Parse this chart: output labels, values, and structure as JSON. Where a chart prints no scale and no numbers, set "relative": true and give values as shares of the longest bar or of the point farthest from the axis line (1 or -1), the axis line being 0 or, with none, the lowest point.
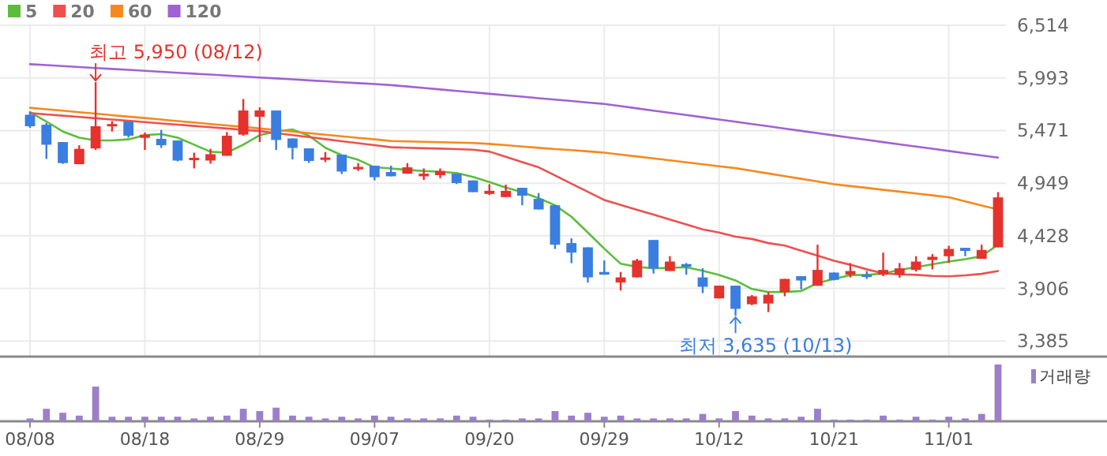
{
  "chart_data": [
    {
      "type": "candlestick",
      "categories": [
        null,
        null,
        null,
        null,
        null,
        null,
        null,
        null,
        null,
        null,
        null,
        null,
        null,
        null,
        null,
        null,
        null,
        null,
        null,
        null,
        null,
        null,
        null,
        null,
        null,
        null,
        null,
        null,
        null,
        null,
        null,
        null,
        null,
        null,
        null,
        null,
        null,
        null,
        null,
        null,
        null,
        null,
        null,
        null,
        null,
        null,
        null,
        null,
        null,
        null,
        null,
        null,
        null,
        null,
        null,
        null,
        null,
        null,
        null,
        null
      ],
      "ohlc": [
        [
          5627,
          5658,
          5497,
          5513
        ],
        [
          5528,
          5545,
          5189,
          5330
        ],
        [
          5356,
          5356,
          5140,
          5148
        ],
        [
          5137,
          5325,
          5137,
          5289
        ],
        [
          5293,
          5950,
          5278,
          5513
        ],
        [
          5528,
          5564,
          5461,
          5535
        ],
        [
          5560,
          5560,
          5400,
          5419
        ],
        [
          5398,
          5450,
          5278,
          5430
        ],
        [
          5388,
          5477,
          5298,
          5325
        ],
        [
          5372,
          5372,
          5165,
          5173
        ],
        [
          5195,
          5251,
          5095,
          5200
        ],
        [
          5173,
          5289,
          5142,
          5236
        ],
        [
          5220,
          5455,
          5220,
          5419
        ],
        [
          5430,
          5783,
          5419,
          5669
        ],
        [
          5607,
          5700,
          5356,
          5670
        ],
        [
          5669,
          5669,
          5278,
          5377
        ],
        [
          5392,
          5392,
          5184,
          5298
        ],
        [
          5294,
          5294,
          5150,
          5169
        ],
        [
          5195,
          5258,
          5157,
          5203
        ],
        [
          5231,
          5231,
          5040,
          5064
        ],
        [
          5100,
          5148,
          5070,
          5110
        ],
        [
          5122,
          5122,
          4976,
          5008
        ],
        [
          5059,
          5122,
          5017,
          5017
        ],
        [
          5043,
          5148,
          5043,
          5106
        ],
        [
          5017,
          5095,
          4981,
          5043
        ],
        [
          5028,
          5095,
          4999,
          5070
        ],
        [
          5043,
          5043,
          4940,
          4950
        ],
        [
          4976,
          4976,
          4860,
          4860
        ],
        [
          4842,
          4939,
          4832,
          4873
        ],
        [
          4811,
          4934,
          4811,
          4873
        ],
        [
          4903,
          4903,
          4730,
          4825
        ],
        [
          4793,
          4851,
          4688,
          4688
        ],
        [
          4730,
          4730,
          4297,
          4339
        ],
        [
          4355,
          4402,
          4156,
          4261
        ],
        [
          4313,
          4313,
          3964,
          4015
        ],
        [
          4069,
          4183,
          4042,
          4042
        ],
        [
          3964,
          4069,
          3886,
          4015
        ],
        [
          4015,
          4199,
          4015,
          4183
        ],
        [
          4386,
          4386,
          4053,
          4105
        ],
        [
          4078,
          4225,
          4078,
          4172
        ],
        [
          4147,
          4157,
          4042,
          4120
        ],
        [
          4015,
          4105,
          3859,
          3922
        ],
        [
          3807,
          3933,
          3807,
          3933
        ],
        [
          3933,
          3933,
          3635,
          3703
        ],
        [
          3749,
          3840,
          3740,
          3828
        ],
        [
          3756,
          3870,
          3671,
          3843
        ],
        [
          3870,
          4000,
          3828,
          4000
        ],
        [
          4027,
          4027,
          3896,
          3984
        ],
        [
          3932,
          4339,
          3932,
          4089
        ],
        [
          4063,
          4063,
          3985,
          3990
        ],
        [
          4042,
          4157,
          4015,
          4078
        ],
        [
          4042,
          4078,
          4000,
          4021
        ],
        [
          4042,
          4261,
          4027,
          4089
        ],
        [
          4042,
          4157,
          4011,
          4105
        ],
        [
          4089,
          4225,
          4073,
          4172
        ],
        [
          4188,
          4245,
          4094,
          4219
        ],
        [
          4225,
          4328,
          4157,
          4297
        ],
        [
          4308,
          4308,
          4225,
          4277
        ],
        [
          4199,
          4339,
          4199,
          4287
        ],
        [
          4313,
          4860,
          4313,
          4808
        ]
      ],
      "colors": [
        "#3a7ee0",
        "#3a7ee0",
        "#3a7ee0",
        "#e5322d",
        "#e5322d",
        "#e5322d",
        "#3a7ee0",
        "#e5322d",
        "#3a7ee0",
        "#3a7ee0",
        "#e5322d",
        "#e5322d",
        "#e5322d",
        "#e5322d",
        "#e5322d",
        "#3a7ee0",
        "#3a7ee0",
        "#3a7ee0",
        "#e5322d",
        "#3a7ee0",
        "#e5322d",
        "#3a7ee0",
        "#3a7ee0",
        "#e5322d",
        "#e5322d",
        "#e5322d",
        "#3a7ee0",
        "#3a7ee0",
        "#e5322d",
        "#e5322d",
        "#3a7ee0",
        "#3a7ee0",
        "#3a7ee0",
        "#3a7ee0",
        "#3a7ee0",
        "#3a7ee0",
        "#e5322d",
        "#e5322d",
        "#3a7ee0",
        "#e5322d",
        "#3a7ee0",
        "#3a7ee0",
        "#e5322d",
        "#3a7ee0",
        "#e5322d",
        "#e5322d",
        "#e5322d",
        "#3a7ee0",
        "#e5322d",
        "#3a7ee0",
        "#e5322d",
        "#3a7ee0",
        "#e5322d",
        "#e5322d",
        "#e5322d",
        "#e5322d",
        "#e5322d",
        "#3a7ee0",
        "#e5322d",
        "#e5322d"
      ],
      "series": [
        {
          "name": "5",
          "type": "line",
          "color": "#5cbd3c",
          "values": [
            5653,
            5560,
            5461,
            5400,
            5372,
            5372,
            5383,
            5425,
            5435,
            5400,
            5330,
            5260,
            5251,
            5330,
            5425,
            5460,
            5481,
            5419,
            5300,
            5226,
            5180,
            5106,
            5095,
            5080,
            5070,
            5062,
            5050,
            5010,
            4960,
            4905,
            4860,
            4800,
            4730,
            4616,
            4460,
            4300,
            4150,
            4120,
            4105,
            4110,
            4116,
            4080,
            4040,
            3985,
            3900,
            3870,
            3870,
            3880,
            3960,
            4000,
            4037,
            4040,
            4053,
            4090,
            4115,
            4145,
            4172,
            4195,
            4225,
            4339
          ]
        },
        {
          "name": "20",
          "type": "line",
          "color": "#ee5050",
          "values": [
            5643,
            5630,
            5618,
            5605,
            5592,
            5580,
            5567,
            5554,
            5541,
            5529,
            5516,
            5503,
            5491,
            5478,
            5465,
            5445,
            5425,
            5405,
            5385,
            5365,
            5345,
            5325,
            5305,
            5300,
            5295,
            5291,
            5286,
            5281,
            5262,
            5210,
            5158,
            5106,
            5025,
            4944,
            4863,
            4782,
            4734,
            4685,
            4637,
            4588,
            4540,
            4491,
            4460,
            4418,
            4396,
            4355,
            4330,
            4280,
            4230,
            4180,
            4140,
            4095,
            4055,
            4045,
            4040,
            4030,
            4026,
            4035,
            4050,
            4078
          ]
        },
        {
          "name": "60",
          "type": "line",
          "color": "#f5891e",
          "values": [
            5696,
            5681,
            5667,
            5652,
            5638,
            5623,
            5608,
            5594,
            5579,
            5564,
            5550,
            5535,
            5521,
            5506,
            5491,
            5476,
            5460,
            5445,
            5429,
            5414,
            5398,
            5383,
            5367,
            5363,
            5359,
            5355,
            5351,
            5347,
            5338,
            5325,
            5312,
            5299,
            5286,
            5277,
            5264,
            5251,
            5232,
            5213,
            5194,
            5175,
            5156,
            5136,
            5117,
            5098,
            5072,
            5045,
            5019,
            4992,
            4966,
            4939,
            4920,
            4902,
            4883,
            4865,
            4846,
            4828,
            4809,
            4769,
            4728,
            4688
          ]
        },
        {
          "name": "120",
          "type": "line",
          "color": "#a062d2",
          "values": [
            6128,
            6119,
            6109,
            6100,
            6090,
            6081,
            6072,
            6062,
            6053,
            6043,
            6034,
            6025,
            6015,
            6006,
            5996,
            5987,
            5978,
            5968,
            5959,
            5949,
            5940,
            5931,
            5921,
            5907,
            5892,
            5878,
            5863,
            5849,
            5835,
            5820,
            5806,
            5791,
            5777,
            5763,
            5748,
            5734,
            5712,
            5690,
            5668,
            5646,
            5624,
            5602,
            5580,
            5558,
            5535,
            5513,
            5490,
            5467,
            5445,
            5422,
            5400,
            5378,
            5356,
            5334,
            5312,
            5290,
            5268,
            5246,
            5224,
            5203
          ]
        }
      ],
      "ylim": [
        3230,
        6514
      ],
      "yticks": [
        {
          "value": 6514,
          "label": "6,514"
        },
        {
          "value": 5993,
          "label": "5,993"
        },
        {
          "value": 5471,
          "label": "5,471"
        },
        {
          "value": 4949,
          "label": "4,949"
        },
        {
          "value": 4428,
          "label": "4,428"
        },
        {
          "value": 3906,
          "label": "3,906"
        },
        {
          "value": 3385,
          "label": "3,385"
        }
      ],
      "grid": true,
      "legend": "top left",
      "tick_labels": "y",
      "annotations": [
        "최고 5,950 (08/12)",
        "최저 3,635 (10/13)"
      ]
    },
    {
      "type": "bar",
      "categories": [
        "08/08",
        null,
        null,
        null,
        null,
        null,
        null,
        "08/18",
        null,
        null,
        null,
        null,
        null,
        null,
        "08/29",
        null,
        null,
        null,
        null,
        null,
        null,
        "09/07",
        null,
        null,
        null,
        null,
        null,
        null,
        "09/20",
        null,
        null,
        null,
        null,
        null,
        null,
        "09/29",
        null,
        null,
        null,
        null,
        null,
        null,
        "10/12",
        null,
        null,
        null,
        null,
        null,
        null,
        "10/21",
        null,
        null,
        null,
        null,
        null,
        null,
        "11/01",
        null,
        null,
        null
      ],
      "series": [
        {
          "name": "거래량",
          "color": "#9b7fc9",
          "values": [
            0.05,
            0.22,
            0.15,
            0.1,
            0.61,
            0.08,
            0.08,
            0.08,
            0.08,
            0.08,
            0.05,
            0.08,
            0.1,
            0.22,
            0.18,
            0.24,
            0.1,
            0.08,
            0.05,
            0.08,
            0.05,
            0.1,
            0.08,
            0.05,
            0.05,
            0.05,
            0.1,
            0.08,
            0.03,
            0.03,
            0.05,
            0.05,
            0.18,
            0.1,
            0.15,
            0.08,
            0.1,
            0.05,
            0.05,
            0.05,
            0.05,
            0.13,
            0.05,
            0.18,
            0.1,
            0.05,
            0.05,
            0.08,
            0.22,
            0.03,
            0.03,
            0.03,
            0.1,
            0.03,
            0.08,
            0.03,
            0.08,
            0.05,
            0.13,
            1
          ]
        }
      ],
      "relative": true,
      "tick_labels": "x",
      "legend": "top right"
    }
  ]
}
